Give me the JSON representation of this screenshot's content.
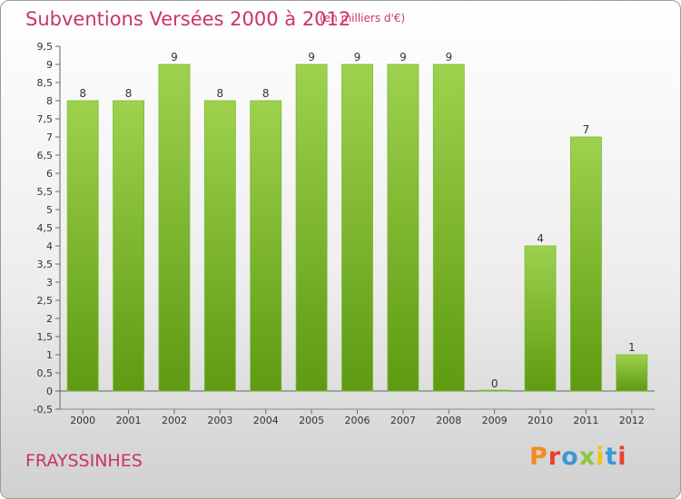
{
  "header": {
    "title": "Subventions Versées 2000 à 2012",
    "subtitle": "(en milliers d'€)"
  },
  "footer": {
    "commune": "FRAYSSINHES",
    "logo": "Proxiti"
  },
  "colors": {
    "title": "#cc3366",
    "bar_top": "#9ed24e",
    "bar_bottom": "#5e9a12",
    "logo_letters": [
      "#f28c1e",
      "#e8412c",
      "#3a98d8",
      "#8cc63f",
      "#f2c01e",
      "#3a98d8",
      "#e8412c"
    ]
  },
  "chart_data": {
    "type": "bar",
    "title": "Subventions Versées 2000 à 2012",
    "subtitle": "(en milliers d'€)",
    "categories": [
      "2000",
      "2001",
      "2002",
      "2003",
      "2004",
      "2005",
      "2006",
      "2007",
      "2008",
      "2009",
      "2010",
      "2011",
      "2012"
    ],
    "values": [
      8,
      8,
      9,
      8,
      8,
      9,
      9,
      9,
      9,
      0,
      4,
      7,
      1
    ],
    "data_labels": [
      "8",
      "8",
      "9",
      "8",
      "8",
      "9",
      "9",
      "9",
      "9",
      "0",
      "4",
      "7",
      "1"
    ],
    "ylim": [
      -0.5,
      9.5
    ],
    "yticks": [
      "-0,5",
      "0",
      "0,5",
      "1",
      "1,5",
      "2",
      "2,5",
      "3",
      "3,5",
      "4",
      "4,5",
      "5",
      "5,5",
      "6",
      "6,5",
      "7",
      "7,5",
      "8",
      "8,5",
      "9",
      "9,5"
    ],
    "xlabel": "",
    "ylabel": "",
    "grid": false,
    "legend": "none"
  }
}
